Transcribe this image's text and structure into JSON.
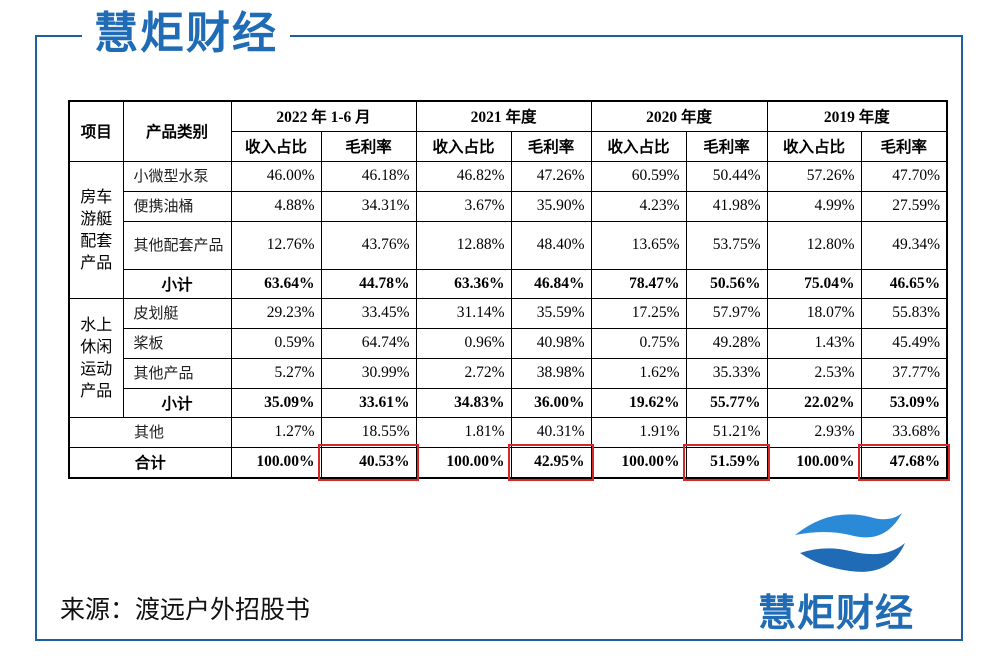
{
  "header": {
    "logo": "慧炬财经"
  },
  "table": {
    "corner": [
      "项目",
      "产品类别"
    ],
    "periods": [
      "2022 年 1-6 月",
      "2021 年度",
      "2020 年度",
      "2019 年度"
    ],
    "subheaders": [
      "收入占比",
      "毛利率",
      "收入占比",
      "毛利率",
      "收入占比",
      "毛利率",
      "收入占比",
      "毛利率"
    ],
    "groups": [
      {
        "label": "房车游艇配套产品",
        "rows": [
          {
            "name": "小微型水泵",
            "values": [
              "46.00%",
              "46.18%",
              "46.82%",
              "47.26%",
              "60.59%",
              "50.44%",
              "57.26%",
              "47.70%"
            ]
          },
          {
            "name": "便携油桶",
            "values": [
              "4.88%",
              "34.31%",
              "3.67%",
              "35.90%",
              "4.23%",
              "41.98%",
              "4.99%",
              "27.59%"
            ]
          },
          {
            "name": "其他配套产品",
            "values": [
              "12.76%",
              "43.76%",
              "12.88%",
              "48.40%",
              "13.65%",
              "53.75%",
              "12.80%",
              "49.34%"
            ]
          }
        ],
        "subtotal": {
          "label": "小计",
          "values": [
            "63.64%",
            "44.78%",
            "63.36%",
            "46.84%",
            "78.47%",
            "50.56%",
            "75.04%",
            "46.65%"
          ]
        }
      },
      {
        "label": "水上休闲运动产品",
        "rows": [
          {
            "name": "皮划艇",
            "values": [
              "29.23%",
              "33.45%",
              "31.14%",
              "35.59%",
              "17.25%",
              "57.97%",
              "18.07%",
              "55.83%"
            ]
          },
          {
            "name": "桨板",
            "values": [
              "0.59%",
              "64.74%",
              "0.96%",
              "40.98%",
              "0.75%",
              "49.28%",
              "1.43%",
              "45.49%"
            ]
          },
          {
            "name": "其他产品",
            "values": [
              "5.27%",
              "30.99%",
              "2.72%",
              "38.98%",
              "1.62%",
              "35.33%",
              "2.53%",
              "37.77%"
            ]
          }
        ],
        "subtotal": {
          "label": "小计",
          "values": [
            "35.09%",
            "33.61%",
            "34.83%",
            "36.00%",
            "19.62%",
            "55.77%",
            "22.02%",
            "53.09%"
          ]
        }
      }
    ],
    "other": {
      "name": "其他",
      "values": [
        "1.27%",
        "18.55%",
        "1.81%",
        "40.31%",
        "1.91%",
        "51.21%",
        "2.93%",
        "33.68%"
      ]
    },
    "total": {
      "label": "合计",
      "values": [
        "100.00%",
        "40.53%",
        "100.00%",
        "42.95%",
        "100.00%",
        "51.59%",
        "100.00%",
        "47.68%"
      ]
    }
  },
  "source": "来源：渡远户外招股书",
  "footer": {
    "logo": "慧炬财经"
  }
}
